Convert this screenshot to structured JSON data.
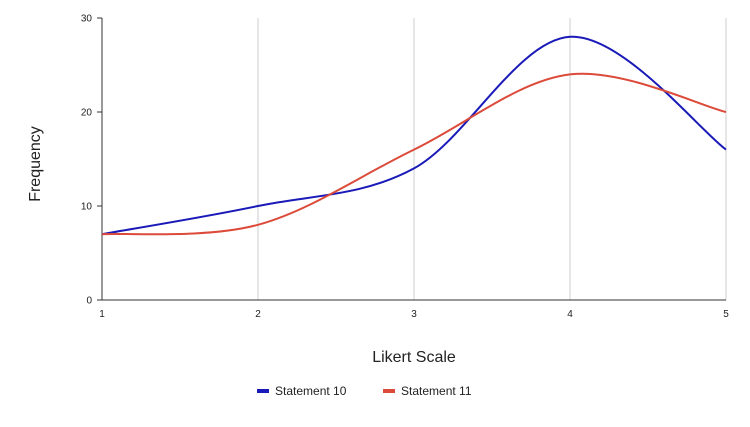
{
  "chart_data": {
    "type": "line",
    "smooth": true,
    "x": [
      1,
      2,
      3,
      4,
      5
    ],
    "xlabel": "Likert Scale",
    "ylabel": "Frequency",
    "xlim": [
      1,
      5
    ],
    "ylim": [
      0,
      30
    ],
    "x_ticks": [
      "1",
      "2",
      "3",
      "4",
      "5"
    ],
    "y_ticks": [
      "0",
      "10",
      "20",
      "30"
    ],
    "grid": "vertical",
    "legend_position": "bottom",
    "series": [
      {
        "name": "Statement 10",
        "color": "#1a1ab8",
        "values": [
          7,
          10,
          14,
          28,
          16
        ]
      },
      {
        "name": "Statement 11",
        "color": "#dc4a3a",
        "values": [
          7,
          8,
          16,
          24,
          20
        ]
      }
    ]
  }
}
